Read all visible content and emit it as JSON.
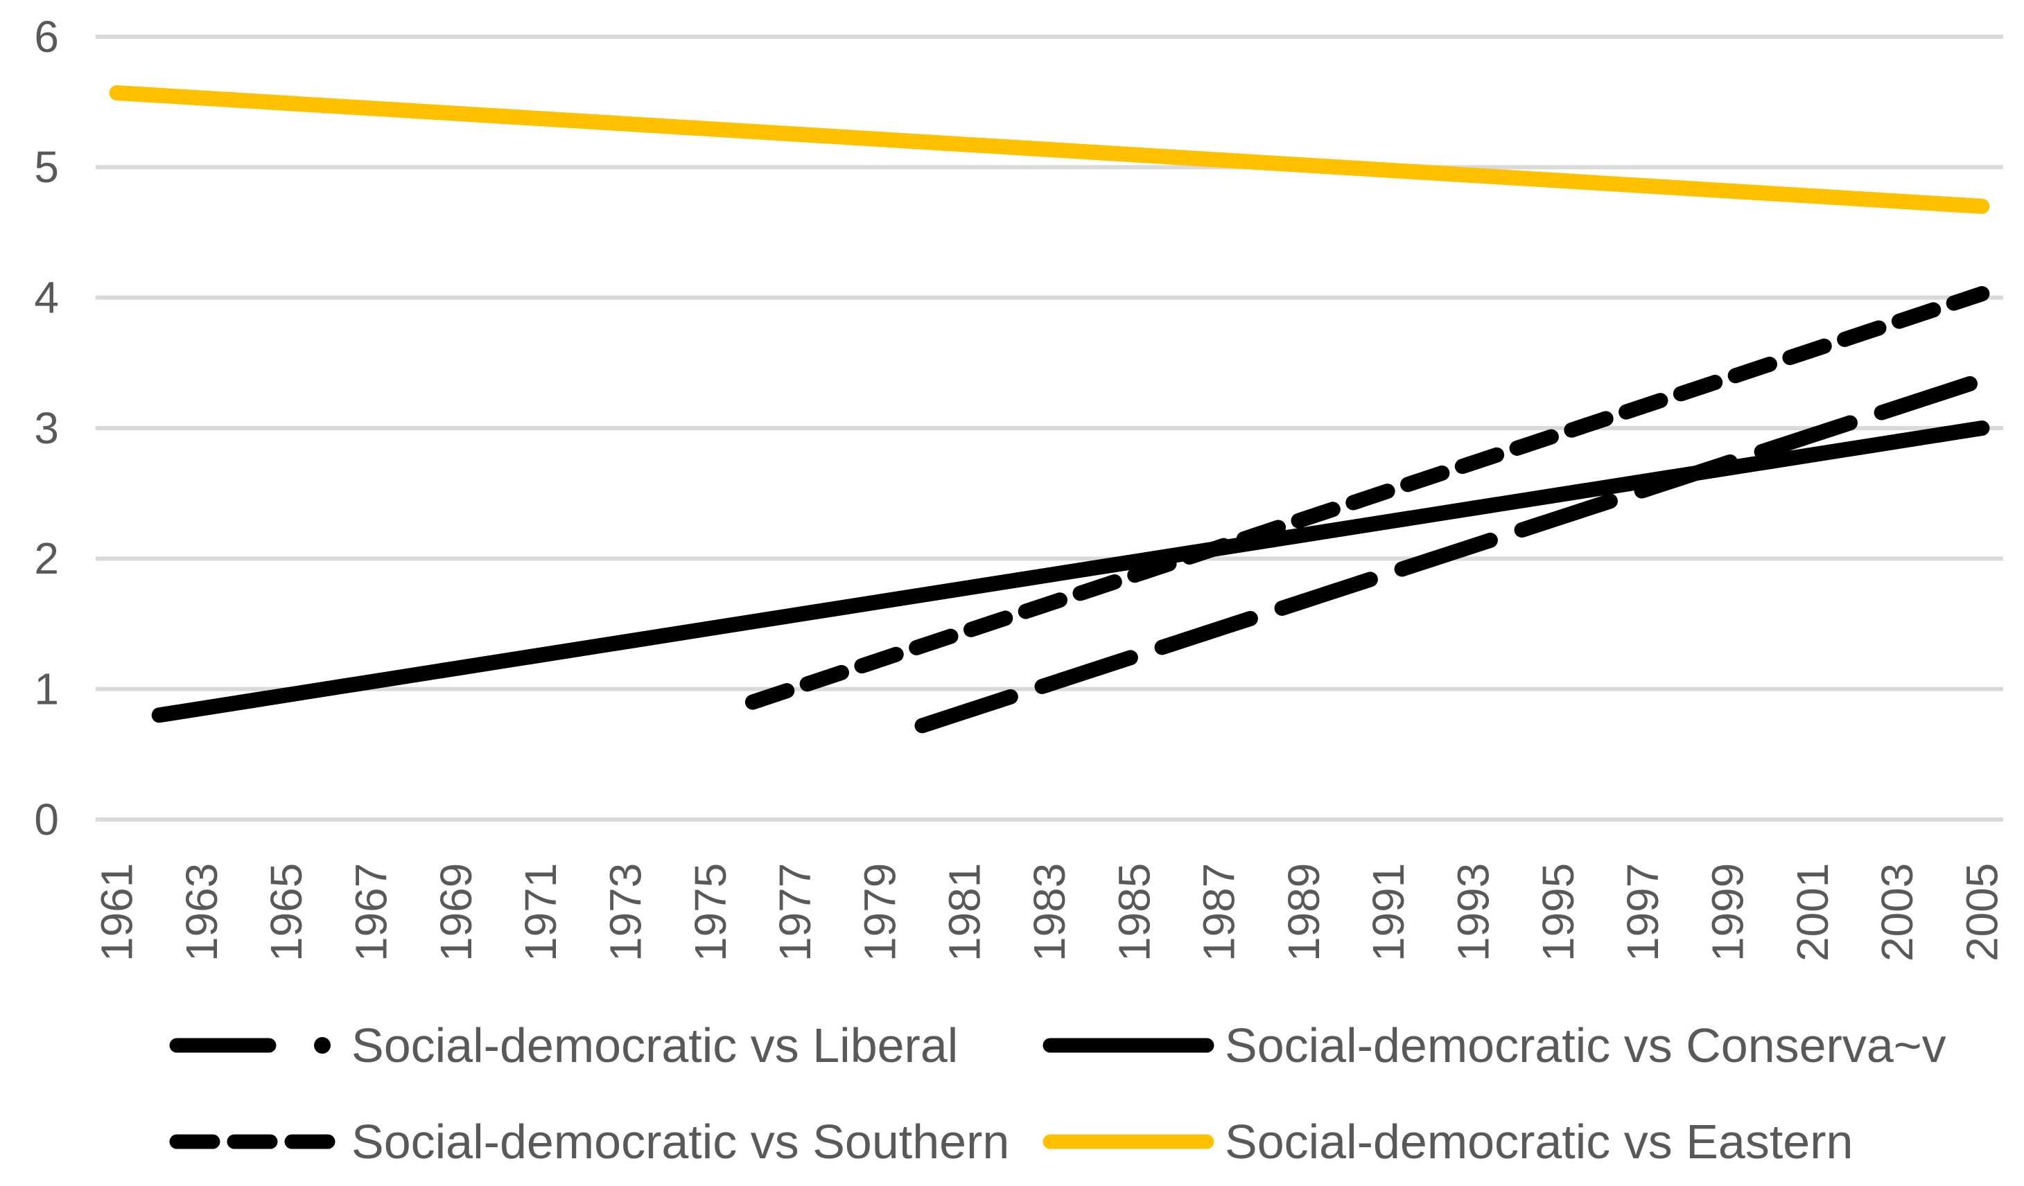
{
  "page": {
    "background_color": "#FFFFFF",
    "text_color": "#595959",
    "gridline_color": "#D9D9D9"
  },
  "chart_data": {
    "type": "line",
    "title": "",
    "xlabel": "",
    "ylabel": "",
    "grid": "horizontal-only",
    "legend_position": "bottom-two-columns",
    "x_axis": {
      "kind": "category-years",
      "year_min": 1961,
      "year_max": 2005,
      "tick_labels": [
        "1961",
        "1963",
        "1965",
        "1967",
        "1969",
        "1971",
        "1973",
        "1975",
        "1977",
        "1979",
        "1981",
        "1983",
        "1985",
        "1987",
        "1989",
        "1991",
        "1993",
        "1995",
        "1997",
        "1999",
        "2001",
        "2003",
        "2005"
      ],
      "label_rotation_deg": -90
    },
    "y_axis": {
      "min": 0,
      "max": 6,
      "tick_labels": [
        "0",
        "1",
        "2",
        "3",
        "4",
        "5",
        "6"
      ]
    },
    "series": [
      {
        "name": "Social-democratic vs Liberal",
        "color": "#000000",
        "style": "long-dash",
        "legend_marker": "long-dash-dot",
        "shape": "linear-trend",
        "points": [
          {
            "x": 1980,
            "y": 0.72
          },
          {
            "x": 2005,
            "y": 3.37
          }
        ]
      },
      {
        "name": "Social-democratic vs Conserva~v",
        "color": "#000000",
        "style": "solid",
        "legend_marker": "solid",
        "shape": "linear-trend",
        "points": [
          {
            "x": 1962,
            "y": 0.8
          },
          {
            "x": 2005,
            "y": 3.0
          }
        ]
      },
      {
        "name": "Social-democratic vs Southern",
        "color": "#000000",
        "style": "short-dash",
        "legend_marker": "short-dash",
        "shape": "linear-trend",
        "points": [
          {
            "x": 1976,
            "y": 0.9
          },
          {
            "x": 2005,
            "y": 4.03
          }
        ]
      },
      {
        "name": "Social-democratic vs Eastern",
        "color": "#FFC000",
        "style": "solid",
        "legend_marker": "solid",
        "shape": "linear-trend",
        "points": [
          {
            "x": 1961,
            "y": 5.57
          },
          {
            "x": 2005,
            "y": 4.7
          }
        ]
      }
    ]
  }
}
